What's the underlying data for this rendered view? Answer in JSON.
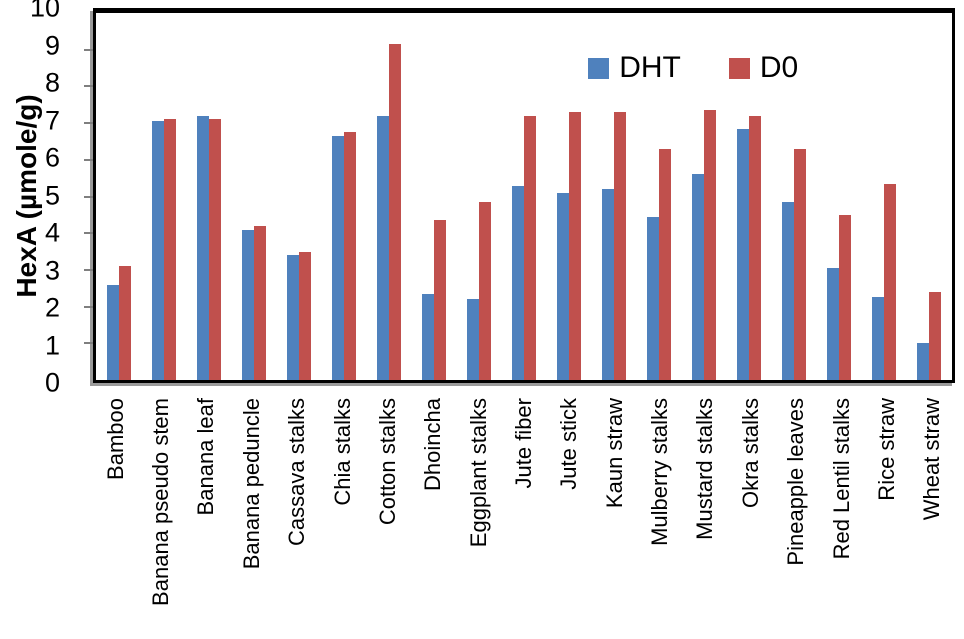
{
  "chart_data": {
    "type": "bar",
    "title": "",
    "xlabel": "",
    "ylabel": "HexA (µmole/g)",
    "ylim": [
      0,
      10
    ],
    "yticks": [
      0,
      1,
      2,
      3,
      4,
      5,
      6,
      7,
      8,
      9,
      10
    ],
    "grid": false,
    "legend_position": "top-right-inside",
    "categories": [
      "Bamboo",
      "Banana pseudo stem",
      "Banana leaf",
      "Banana peduncle",
      "Cassava stalks",
      "Chia stalks",
      "Cotton stalks",
      "Dhoincha",
      "Eggplant stalks",
      "Jute fiber",
      "Jute stick",
      "Kaun straw",
      "Mulberry stalks",
      "Mustard stalks",
      "Okra stalks",
      "Pineapple leaves",
      "Red Lentil stalks",
      "Rice straw",
      "Wheat straw"
    ],
    "series": [
      {
        "name": "DHT",
        "color": "#4F81BD",
        "values": [
          2.6,
          7.05,
          7.2,
          4.1,
          3.4,
          6.65,
          7.2,
          2.35,
          2.2,
          5.3,
          5.1,
          5.2,
          4.45,
          5.6,
          6.85,
          4.85,
          3.05,
          2.25,
          1.0
        ]
      },
      {
        "name": "D0",
        "color": "#C0504D",
        "values": [
          3.1,
          7.1,
          7.1,
          4.2,
          3.5,
          6.75,
          9.15,
          4.35,
          4.85,
          7.2,
          7.3,
          7.3,
          6.3,
          7.35,
          7.2,
          6.3,
          4.5,
          5.35,
          2.4
        ]
      }
    ],
    "colors": {
      "axis_line": "#000000",
      "axis_shadow": "#9a9a9a",
      "tick": "#7f7f7f"
    }
  }
}
